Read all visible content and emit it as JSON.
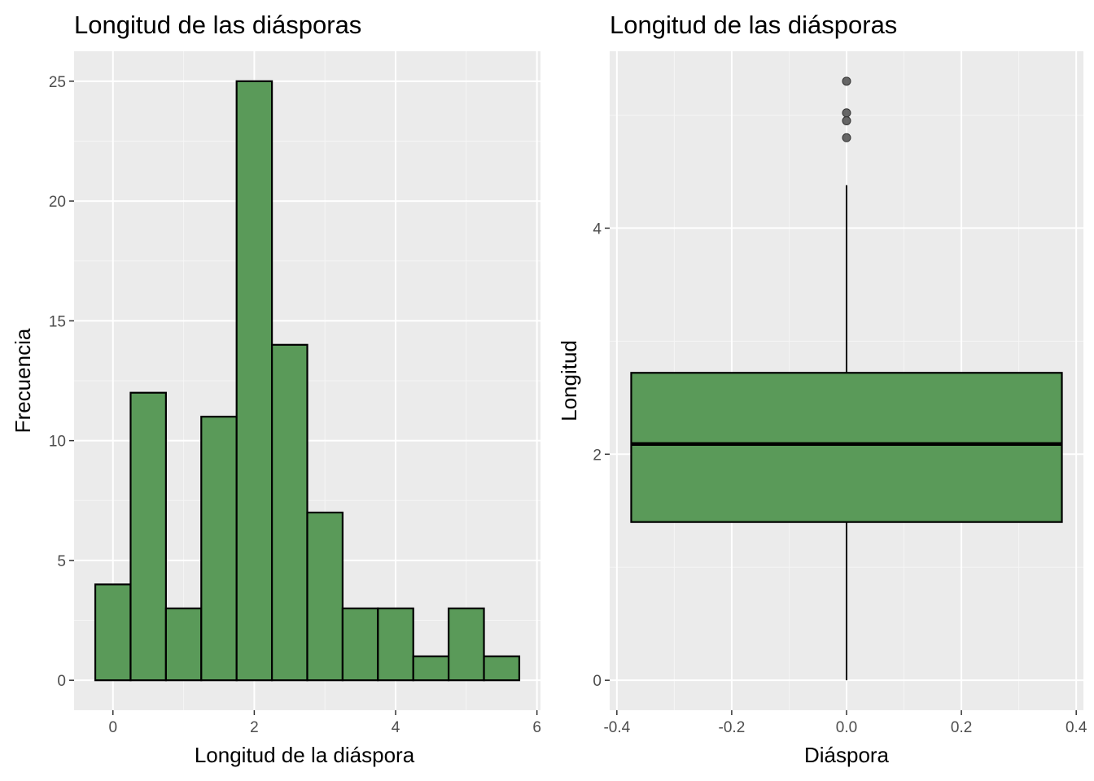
{
  "colors": {
    "panel_background": "#ebebeb",
    "grid_major": "#ffffff",
    "grid_minor": "#f5f5f5",
    "fill": "#5a9a59",
    "stroke": "#000000",
    "outlier": "#4d4d4d",
    "tick_text": "#4d4d4d"
  },
  "chart_data": [
    {
      "type": "bar",
      "subtype": "histogram",
      "title": "Longitud de las diásporas",
      "xlabel": "Longitud de la diáspora",
      "ylabel": "Frecuencia",
      "xlim": [
        -0.55,
        6.05
      ],
      "ylim": [
        -1.25,
        26.25
      ],
      "x_ticks": [
        0,
        2,
        4,
        6
      ],
      "x_tick_labels": [
        "0",
        "2",
        "4",
        "6"
      ],
      "y_ticks": [
        0,
        5,
        10,
        15,
        20,
        25
      ],
      "y_tick_labels": [
        "0",
        "5",
        "10",
        "15",
        "20",
        "25"
      ],
      "grid": true,
      "bin_width": 0.5,
      "bin_centers": [
        0,
        0.5,
        1,
        1.5,
        2,
        2.5,
        3,
        3.5,
        4,
        4.5,
        5,
        5.5
      ],
      "values": [
        4,
        12,
        3,
        11,
        25,
        14,
        7,
        3,
        3,
        1,
        3,
        1
      ]
    },
    {
      "type": "box",
      "title": "Longitud de las diásporas",
      "xlabel": "Diáspora",
      "ylabel": "Longitud",
      "xlim": [
        -0.4125,
        0.4125
      ],
      "ylim": [
        -0.265,
        5.565
      ],
      "x_ticks": [
        -0.4,
        -0.2,
        0,
        0.2,
        0.4
      ],
      "x_tick_labels": [
        "-0.4",
        "-0.2",
        "0.0",
        "0.2",
        "0.4"
      ],
      "y_ticks": [
        0,
        2,
        4
      ],
      "y_tick_labels": [
        "0",
        "2",
        "4"
      ],
      "grid": true,
      "box": {
        "x": 0,
        "width": 0.75,
        "whisker_low": 0.0,
        "q1": 1.4,
        "median": 2.09,
        "q3": 2.72,
        "whisker_high": 4.38
      },
      "outliers": [
        5.3,
        5.02,
        4.95,
        4.8
      ]
    }
  ]
}
